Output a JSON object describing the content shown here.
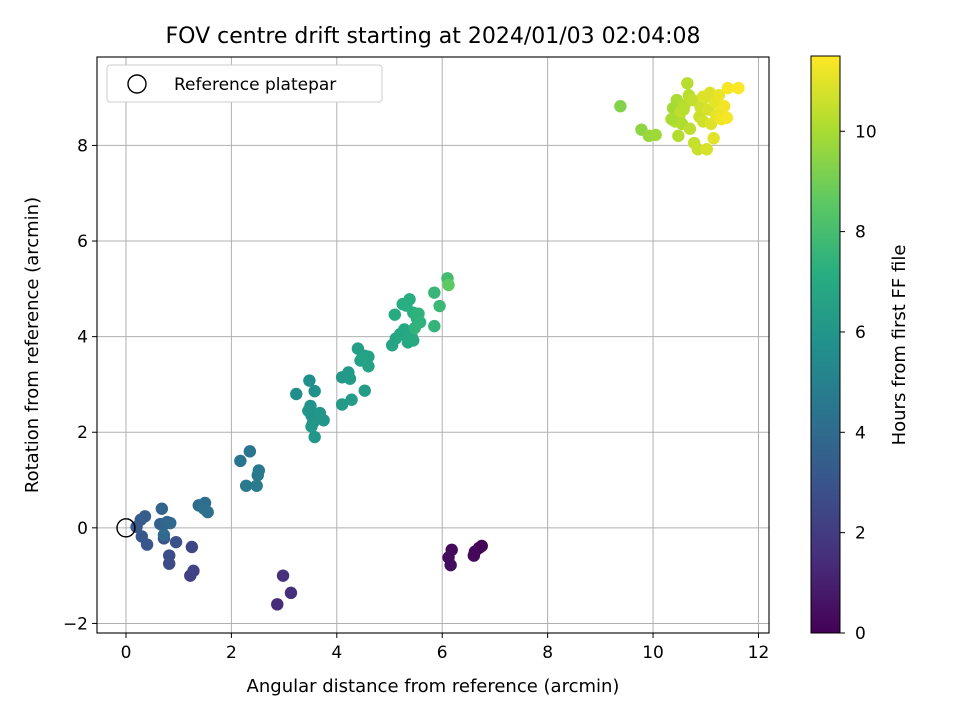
{
  "chart_data": {
    "type": "scatter",
    "title": "FOV centre drift starting at 2024/01/03 02:04:08",
    "xlabel": "Angular distance from reference (arcmin)",
    "ylabel": "Rotation from reference (arcmin)",
    "xlim": [
      -0.55,
      12.2
    ],
    "ylim": [
      -2.2,
      9.85
    ],
    "xticks": [
      0,
      2,
      4,
      6,
      8,
      10,
      12
    ],
    "yticks": [
      -2,
      0,
      2,
      4,
      6,
      8
    ],
    "grid": true,
    "legend": {
      "position": "top-left",
      "entries": [
        "Reference platepar"
      ]
    },
    "reference_point": {
      "x": 0,
      "y": 0
    },
    "colorbar": {
      "label": "Hours from first FF file",
      "colormap": "viridis",
      "range": [
        0,
        11.5
      ],
      "ticks": [
        0,
        2,
        4,
        6,
        8,
        10
      ]
    },
    "series": [
      {
        "points": [
          [
            6.75,
            -0.38,
            0.05
          ],
          [
            6.7,
            -0.42,
            0.1
          ],
          [
            6.62,
            -0.5,
            0.15
          ],
          [
            6.6,
            -0.58,
            0.2
          ],
          [
            6.18,
            -0.46,
            0.3
          ],
          [
            6.12,
            -0.62,
            0.35
          ],
          [
            6.16,
            -0.78,
            0.4
          ],
          [
            2.87,
            -1.6,
            1.4
          ],
          [
            3.13,
            -1.36,
            1.5
          ],
          [
            2.98,
            -1.0,
            1.6
          ],
          [
            1.22,
            -1.0,
            2.2
          ],
          [
            1.28,
            -0.9,
            2.3
          ],
          [
            1.25,
            -0.4,
            2.4
          ],
          [
            0.82,
            -0.75,
            2.6
          ],
          [
            0.82,
            -0.58,
            2.7
          ],
          [
            0.95,
            -0.3,
            2.8
          ],
          [
            0.72,
            -0.22,
            2.9
          ],
          [
            0.4,
            -0.35,
            3.0
          ],
          [
            0.3,
            -0.18,
            3.1
          ],
          [
            0.2,
            0.02,
            3.2
          ],
          [
            0.28,
            0.17,
            3.3
          ],
          [
            0.36,
            0.24,
            3.4
          ],
          [
            0.65,
            0.08,
            3.5
          ],
          [
            0.7,
            0.05,
            3.6
          ],
          [
            0.68,
            0.4,
            3.7
          ],
          [
            0.78,
            0.12,
            3.8
          ],
          [
            0.84,
            0.1,
            3.9
          ],
          [
            0.72,
            -0.15,
            3.95
          ],
          [
            1.38,
            0.47,
            4.0
          ],
          [
            1.5,
            0.52,
            4.1
          ],
          [
            1.55,
            0.33,
            4.2
          ],
          [
            1.48,
            0.4,
            4.25
          ],
          [
            2.17,
            1.4,
            4.4
          ],
          [
            2.35,
            1.6,
            4.5
          ],
          [
            2.52,
            1.2,
            4.6
          ],
          [
            2.5,
            1.1,
            4.65
          ],
          [
            2.28,
            0.88,
            4.7
          ],
          [
            2.48,
            0.88,
            4.75
          ],
          [
            3.23,
            2.8,
            5.6
          ],
          [
            3.48,
            3.08,
            5.7
          ],
          [
            3.58,
            2.86,
            5.75
          ],
          [
            3.5,
            2.55,
            5.8
          ],
          [
            3.52,
            2.35,
            5.85
          ],
          [
            3.46,
            2.45,
            5.9
          ],
          [
            3.55,
            2.2,
            5.92
          ],
          [
            3.62,
            2.3,
            5.95
          ],
          [
            3.68,
            2.4,
            6.0
          ],
          [
            3.58,
            1.9,
            6.02
          ],
          [
            3.75,
            2.25,
            6.05
          ],
          [
            3.52,
            2.12,
            6.08
          ],
          [
            4.1,
            3.15,
            6.1
          ],
          [
            4.22,
            3.25,
            6.15
          ],
          [
            4.25,
            3.12,
            6.2
          ],
          [
            4.1,
            2.58,
            6.25
          ],
          [
            4.28,
            2.68,
            6.3
          ],
          [
            4.53,
            2.87,
            6.35
          ],
          [
            4.4,
            3.75,
            6.4
          ],
          [
            4.45,
            3.5,
            6.45
          ],
          [
            4.52,
            3.6,
            6.5
          ],
          [
            4.6,
            3.58,
            6.55
          ],
          [
            4.6,
            3.38,
            6.6
          ],
          [
            4.48,
            3.55,
            6.62
          ],
          [
            5.05,
            3.82,
            6.7
          ],
          [
            5.12,
            3.96,
            6.75
          ],
          [
            5.2,
            4.05,
            6.8
          ],
          [
            5.28,
            4.15,
            6.85
          ],
          [
            5.35,
            3.88,
            6.9
          ],
          [
            5.42,
            4.0,
            6.95
          ],
          [
            5.45,
            3.92,
            7.0
          ],
          [
            5.1,
            4.46,
            7.05
          ],
          [
            5.25,
            4.68,
            7.1
          ],
          [
            5.38,
            4.78,
            7.15
          ],
          [
            5.32,
            4.65,
            7.2
          ],
          [
            5.45,
            4.5,
            7.25
          ],
          [
            5.52,
            4.38,
            7.3
          ],
          [
            5.55,
            4.48,
            7.35
          ],
          [
            5.58,
            4.3,
            7.4
          ],
          [
            5.48,
            4.18,
            7.45
          ],
          [
            5.85,
            4.22,
            7.5
          ],
          [
            5.85,
            4.92,
            7.6
          ],
          [
            5.95,
            4.64,
            7.7
          ],
          [
            6.1,
            5.22,
            7.9
          ],
          [
            6.12,
            5.08,
            8.6
          ],
          [
            9.38,
            8.82,
            9.3
          ],
          [
            9.78,
            8.33,
            9.5
          ],
          [
            9.92,
            8.2,
            9.7
          ],
          [
            10.05,
            8.22,
            9.8
          ],
          [
            10.38,
            8.78,
            9.9
          ],
          [
            10.45,
            8.95,
            10.0
          ],
          [
            10.5,
            8.62,
            10.05
          ],
          [
            10.55,
            8.45,
            10.1
          ],
          [
            10.48,
            8.2,
            10.15
          ],
          [
            10.6,
            8.85,
            10.2
          ],
          [
            10.65,
            9.3,
            10.25
          ],
          [
            10.68,
            9.05,
            10.3
          ],
          [
            10.7,
            8.35,
            10.35
          ],
          [
            10.52,
            8.7,
            10.4
          ],
          [
            10.75,
            8.95,
            10.45
          ],
          [
            10.78,
            8.05,
            10.5
          ],
          [
            10.85,
            7.92,
            10.55
          ],
          [
            10.88,
            8.6,
            10.6
          ],
          [
            10.9,
            8.8,
            10.65
          ],
          [
            10.95,
            8.5,
            10.7
          ],
          [
            10.98,
            9.0,
            10.75
          ],
          [
            11.02,
            7.92,
            10.8
          ],
          [
            11.05,
            8.75,
            10.85
          ],
          [
            11.08,
            9.1,
            10.9
          ],
          [
            11.1,
            8.45,
            10.95
          ],
          [
            11.15,
            8.15,
            11.0
          ],
          [
            11.18,
            8.9,
            11.05
          ],
          [
            11.2,
            8.62,
            11.1
          ],
          [
            11.25,
            9.05,
            11.15
          ],
          [
            11.28,
            8.7,
            11.2
          ],
          [
            11.3,
            8.55,
            11.25
          ],
          [
            11.35,
            8.82,
            11.3
          ],
          [
            11.4,
            8.58,
            11.35
          ],
          [
            11.42,
            9.2,
            11.4
          ],
          [
            11.62,
            9.2,
            11.45
          ],
          [
            10.42,
            8.5,
            10.2
          ],
          [
            10.35,
            8.55,
            10.0
          ],
          [
            10.58,
            8.75,
            10.3
          ],
          [
            10.95,
            9.02,
            10.9
          ]
        ]
      }
    ]
  }
}
